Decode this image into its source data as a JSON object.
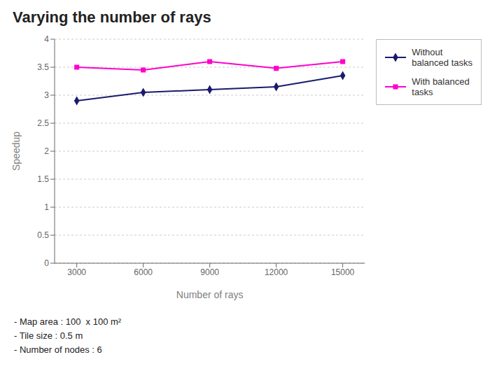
{
  "chart_data": {
    "type": "line",
    "title": "Varying the number of rays",
    "xlabel": "Number of rays",
    "ylabel": "Speedup",
    "x": [
      3000,
      6000,
      9000,
      12000,
      15000
    ],
    "series": [
      {
        "name": "Without\nbalanced tasks",
        "color": "#1a1a6e",
        "marker": "diamond",
        "values": [
          2.9,
          3.05,
          3.1,
          3.15,
          3.35
        ]
      },
      {
        "name": "With balanced\ntasks",
        "color": "#ff00cc",
        "marker": "square",
        "values": [
          3.5,
          3.45,
          3.6,
          3.48,
          3.6
        ]
      }
    ],
    "xlim": [
      2000,
      16000
    ],
    "xticks": [
      3000,
      6000,
      9000,
      12000,
      15000
    ],
    "ylim": [
      0,
      4
    ],
    "yticks": [
      0,
      0.5,
      1,
      1.5,
      2,
      2.5,
      3,
      3.5,
      4
    ],
    "grid": true,
    "legend": "right",
    "annotations": [
      "- Map area : 100  x 100 m²",
      "- Tile size : 0.5 m",
      "- Number of nodes : 6"
    ]
  }
}
